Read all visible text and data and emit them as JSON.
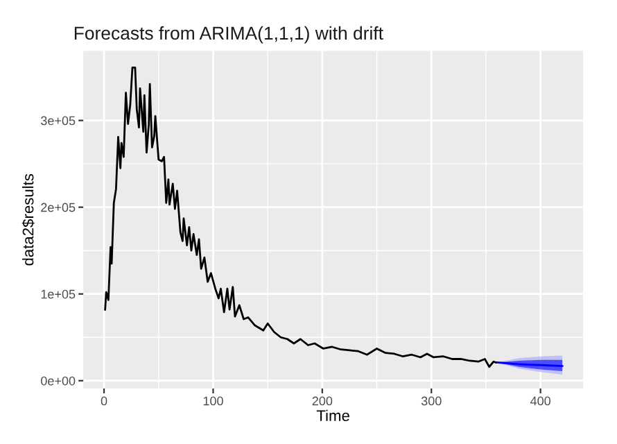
{
  "chart_data": {
    "type": "line",
    "title": "Forecasts from ARIMA(1,1,1) with drift",
    "xlabel": "Time",
    "ylabel": "data2$results",
    "xlim": [
      -19,
      439
    ],
    "ylim": [
      -9000,
      380000
    ],
    "xticks": [
      0,
      100,
      200,
      300,
      400
    ],
    "yticks": [
      {
        "value": 0,
        "label": "0e+00"
      },
      {
        "value": 100000,
        "label": "1e+05"
      },
      {
        "value": 200000,
        "label": "2e+05"
      },
      {
        "value": 300000,
        "label": "3e+05"
      }
    ],
    "grid": true,
    "series": [
      {
        "color": "#000000",
        "x": [
          1,
          2,
          4,
          6,
          7,
          9,
          11,
          13,
          15,
          16,
          18,
          20,
          22,
          24,
          26,
          28.5,
          30,
          32,
          33,
          36,
          37,
          39,
          41,
          42,
          44,
          46,
          47,
          50,
          53,
          55,
          57,
          59,
          60,
          63,
          65,
          67,
          70,
          72,
          73,
          76,
          78,
          80,
          82,
          85,
          87,
          89,
          92,
          95,
          98,
          102,
          105,
          107,
          110,
          113,
          115,
          118,
          120,
          124,
          128,
          132,
          138,
          146,
          150,
          156,
          162,
          168,
          174,
          180,
          187,
          193,
          201,
          209,
          217,
          225,
          233,
          241,
          250,
          258,
          266,
          274,
          282,
          290,
          296,
          302,
          311,
          319,
          327,
          335,
          343,
          349,
          353,
          357,
          359
        ],
        "values": [
          82000,
          102000,
          93000,
          154000,
          135000,
          205000,
          221000,
          281000,
          245000,
          274000,
          258000,
          332000,
          296000,
          318000,
          361000,
          361000,
          313000,
          292000,
          337000,
          287000,
          329000,
          263000,
          295000,
          342000,
          269000,
          282000,
          305000,
          255000,
          253000,
          258000,
          205000,
          232000,
          203000,
          227000,
          198000,
          219000,
          171000,
          161000,
          187000,
          156000,
          177000,
          150000,
          169000,
          145000,
          163000,
          129000,
          142000,
          114000,
          124000,
          106000,
          95000,
          106000,
          79000,
          106000,
          82000,
          108000,
          74000,
          87000,
          71000,
          73000,
          64000,
          58000,
          66000,
          56000,
          50000,
          48000,
          43000,
          48000,
          41000,
          43000,
          37000,
          39000,
          36000,
          35000,
          34000,
          30000,
          37000,
          32000,
          31000,
          28000,
          30000,
          27000,
          31000,
          27000,
          28000,
          25000,
          25000,
          23000,
          22000,
          25000,
          16000,
          22000,
          21000
        ]
      },
      {
        "color": "#0000ff",
        "x": [
          360,
          380,
          400,
          420
        ],
        "values": [
          21000,
          19000,
          18000,
          17000
        ],
        "lower": [
          21000,
          16000,
          13000,
          11000
        ],
        "upper": [
          21000,
          23000,
          24000,
          24000
        ]
      },
      {
        "color": "#a3a3ff",
        "x": [
          360,
          380,
          400,
          420
        ],
        "values": [
          null,
          null,
          null,
          null
        ],
        "lower": [
          21000,
          14000,
          10000,
          7000
        ],
        "upper": [
          21000,
          26000,
          28000,
          29000
        ]
      }
    ]
  }
}
